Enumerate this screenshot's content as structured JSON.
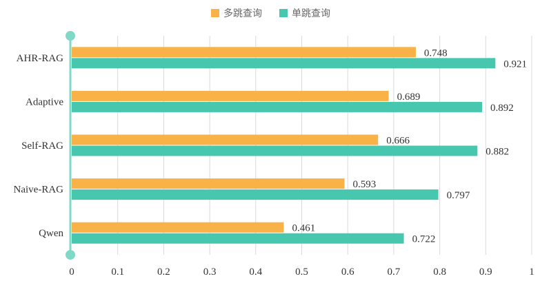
{
  "chart_data": {
    "type": "bar",
    "orientation": "horizontal",
    "categories": [
      "AHR-RAG",
      "Adaptive",
      "Self-RAG",
      "Naive-RAG",
      "Qwen"
    ],
    "series": [
      {
        "name": "多跳查询",
        "values": [
          0.748,
          0.689,
          0.666,
          0.593,
          0.461
        ],
        "labels": [
          "0.748",
          "0.689",
          "0.666",
          "0.593",
          "0.461"
        ],
        "color": "#F9B248"
      },
      {
        "name": "单跳查询",
        "values": [
          0.921,
          0.892,
          0.882,
          0.797,
          0.722
        ],
        "labels": [
          "0.921",
          "0.892",
          "0.882",
          "0.797",
          "0.722"
        ],
        "color": "#47C7AE"
      }
    ],
    "xlim": [
      0,
      1
    ],
    "x_ticks": [
      "0",
      "0.1",
      "0.2",
      "0.3",
      "0.4",
      "0.5",
      "0.6",
      "0.7",
      "0.8",
      "0.9",
      "1"
    ],
    "grid": "vertical",
    "legend": "top",
    "axis_color": "#7FD9C6",
    "grid_color": "#D9D9D9"
  }
}
